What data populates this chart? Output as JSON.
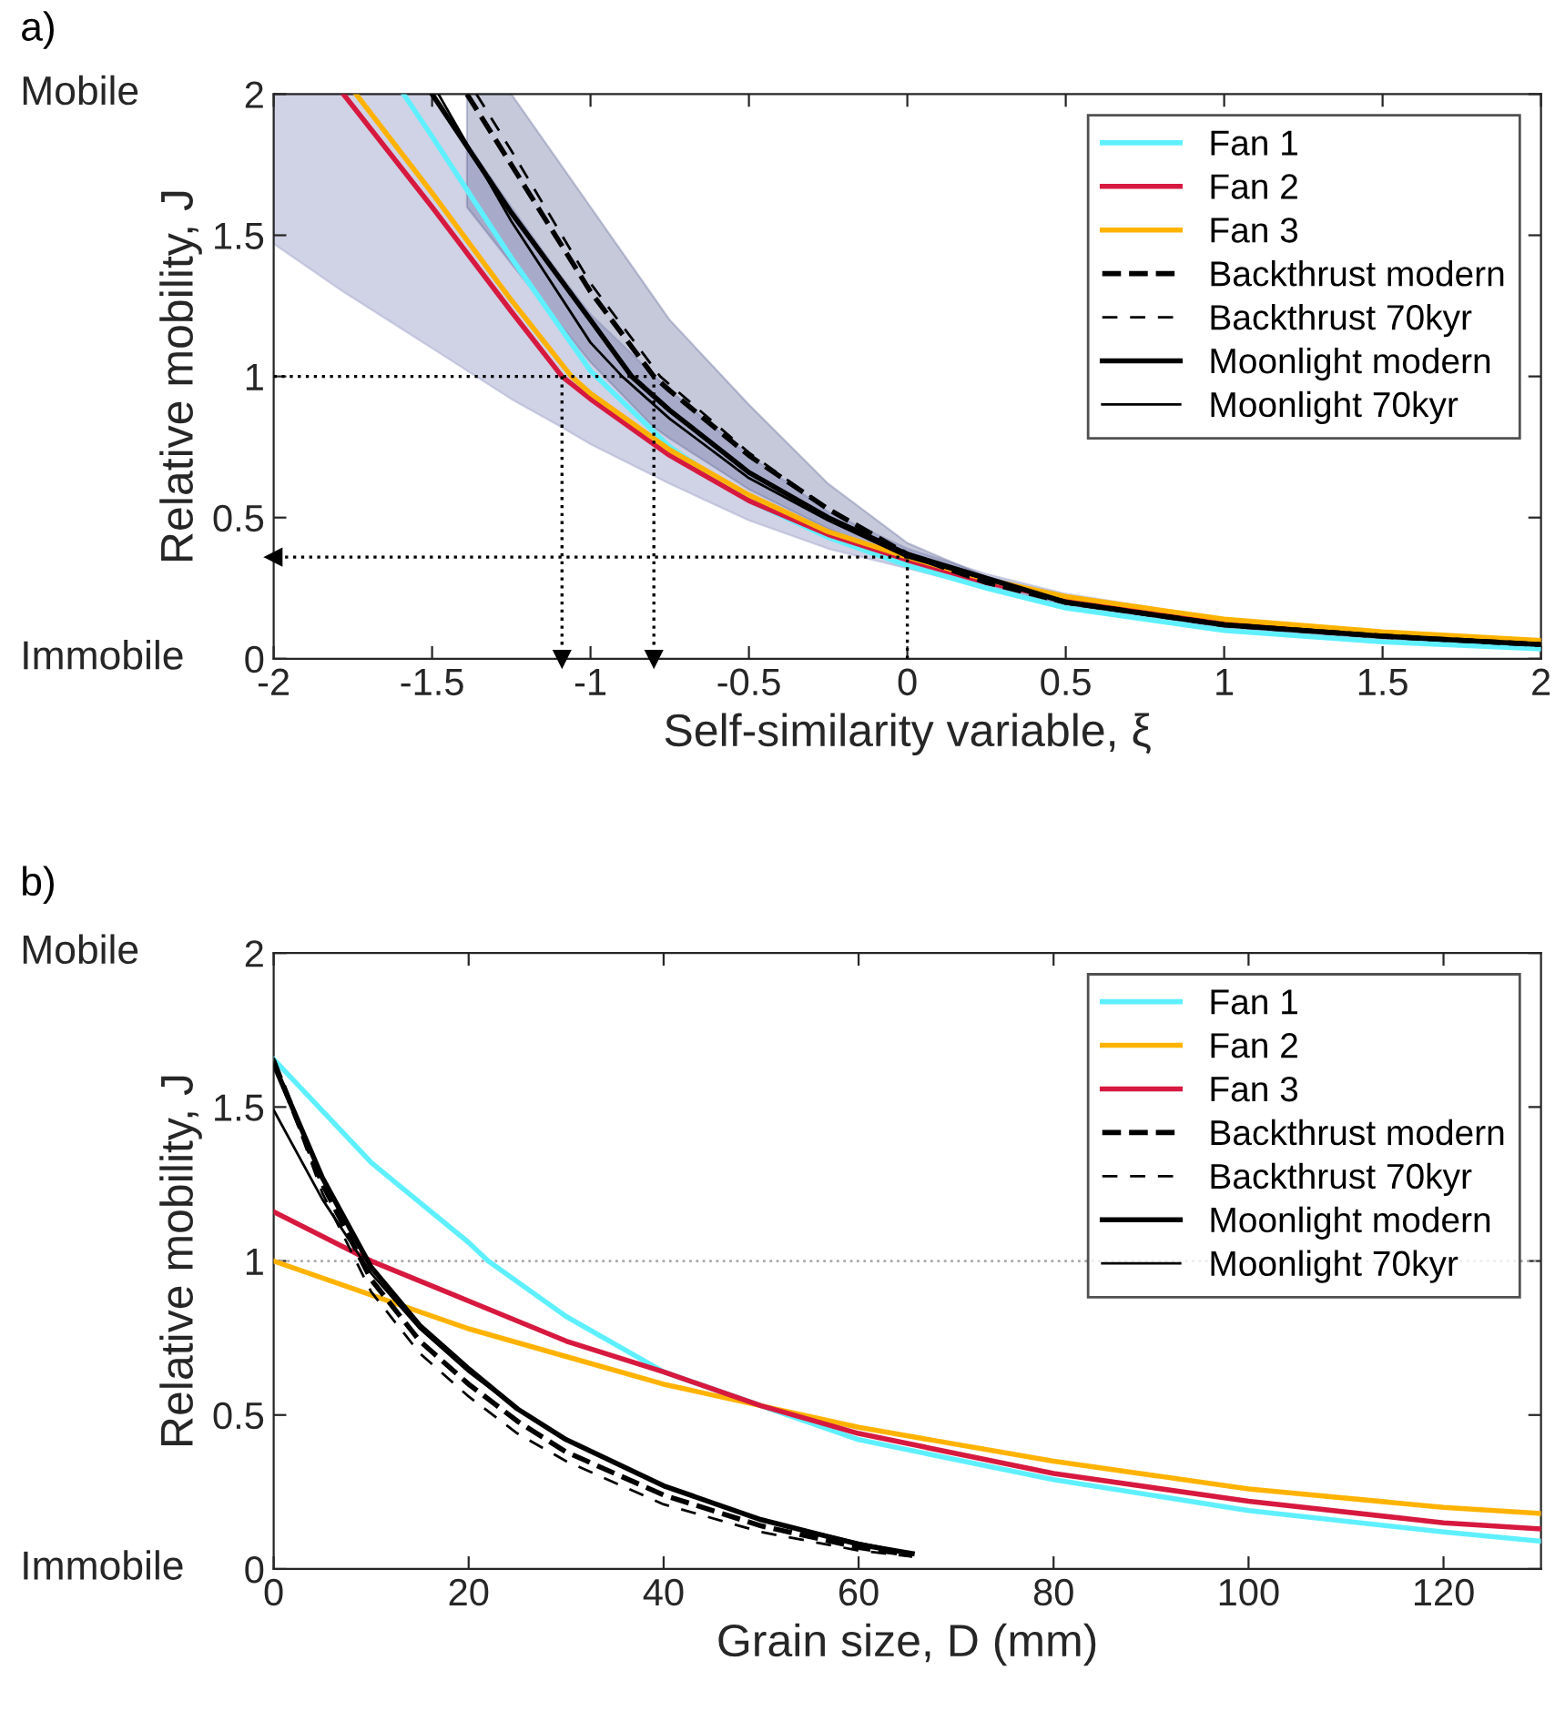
{
  "chart_data": [
    {
      "type": "line",
      "xlabel": "Self-similarity variable, ξ",
      "ylabel": "Relative mobility, J",
      "annotations": [
        "a)",
        "Mobile",
        "Immobile"
      ],
      "xlim": [
        -2,
        2
      ],
      "ylim": [
        0,
        2
      ],
      "xticks": [
        -2,
        -1.5,
        -1,
        -0.5,
        0,
        0.5,
        1,
        1.5,
        2
      ],
      "yticks": [
        0,
        0.5,
        1,
        1.5,
        2
      ],
      "grid": false,
      "legend": "top right",
      "series": [
        {
          "name": "Fan 1",
          "color": "#5ff0ff",
          "x": [
            -1.59,
            -1.5,
            -1.25,
            -1,
            -0.75,
            -0.5,
            -0.25,
            0,
            0.25,
            0.5,
            1,
            1.5,
            2
          ],
          "values": [
            2,
            1.85,
            1.42,
            1.02,
            0.75,
            0.56,
            0.43,
            0.33,
            0.25,
            0.18,
            0.1,
            0.06,
            0.035
          ]
        },
        {
          "name": "Fan 2",
          "color": "#d7193f",
          "x": [
            -2,
            -1.78,
            -1.5,
            -1.25,
            -1.09,
            -1,
            -0.75,
            -0.5,
            -0.25,
            0,
            0.25,
            0.5,
            1,
            1.5,
            2
          ],
          "values": [
            null,
            2,
            1.6,
            1.23,
            1,
            0.92,
            0.72,
            0.56,
            0.44,
            0.35,
            0.27,
            0.21,
            0.13,
            0.085,
            0.055
          ],
          "lower": [
            1.47,
            1.3,
            1.1,
            0.92,
            0.82,
            0.76,
            0.62,
            0.49,
            0.39,
            0.32,
            0.25,
            0.19,
            0.11,
            0.07,
            0.04
          ],
          "upper": [
            2,
            2,
            2,
            1.6,
            1.35,
            1.22,
            0.95,
            0.72,
            0.52,
            0.39,
            0.3,
            0.23,
            0.14,
            0.09,
            0.06
          ]
        },
        {
          "name": "Fan 3",
          "color": "#ffb300",
          "x": [
            -1.74,
            -1.5,
            -1.25,
            -1.06,
            -1,
            -0.75,
            -0.5,
            -0.25,
            0,
            0.25,
            0.5,
            1,
            1.5,
            2
          ],
          "values": [
            2,
            1.65,
            1.27,
            1,
            0.94,
            0.74,
            0.58,
            0.45,
            0.36,
            0.28,
            0.22,
            0.14,
            0.095,
            0.065
          ]
        },
        {
          "name": "Backthrust modern",
          "color": "#000000",
          "line_style": "dashed",
          "x": [
            -1.39,
            -1.25,
            -1,
            -0.8,
            -0.75,
            -0.5,
            -0.25,
            0,
            0.25,
            0.5,
            1,
            1.5,
            2
          ],
          "values": [
            2,
            1.75,
            1.3,
            1.0,
            0.95,
            0.72,
            0.53,
            0.37,
            0.27,
            0.2,
            0.12,
            0.08,
            0.05
          ],
          "lower": [
            1.6,
            1.4,
            1.05,
            0.82,
            0.78,
            0.6,
            0.46,
            0.34,
            0.25,
            0.19,
            0.11,
            0.07,
            0.04
          ],
          "upper": [
            2,
            2,
            1.6,
            1.28,
            1.2,
            0.9,
            0.62,
            0.41,
            0.29,
            0.22,
            0.14,
            0.09,
            0.06
          ]
        },
        {
          "name": "Backthrust 70kyr",
          "color": "#000000",
          "line_style": "dashed",
          "x": [
            -1.36,
            -1.25,
            -1,
            -0.78,
            -0.5,
            -0.25,
            0,
            0.5,
            1,
            1.5,
            2
          ],
          "values": [
            2,
            1.8,
            1.33,
            1.0,
            0.73,
            0.53,
            0.37,
            0.2,
            0.12,
            0.08,
            0.05
          ]
        },
        {
          "name": "Moonlight modern",
          "color": "#000000",
          "line_style": "solid",
          "x": [
            -1.5,
            -1.25,
            -1,
            -0.87,
            -0.75,
            -0.5,
            -0.25,
            0,
            0.5,
            1,
            1.5,
            2
          ],
          "values": [
            2,
            1.58,
            1.2,
            1.0,
            0.88,
            0.66,
            0.5,
            0.37,
            0.2,
            0.12,
            0.08,
            0.05
          ]
        },
        {
          "name": "Moonlight 70kyr",
          "color": "#000000",
          "line_style": "solid",
          "x": [
            -1.48,
            -1.25,
            -1,
            -0.9,
            -0.75,
            -0.5,
            -0.25,
            0,
            0.5,
            1,
            1.5,
            2
          ],
          "values": [
            2,
            1.55,
            1.12,
            1.0,
            0.85,
            0.64,
            0.49,
            0.36,
            0.2,
            0.12,
            0.08,
            0.05
          ]
        },
        {
          "color": "#000000",
          "line_style": "dotted",
          "x": [
            -2,
            -0.8
          ],
          "values": [
            1,
            1
          ]
        },
        {
          "color": "#000000",
          "line_style": "dotted",
          "marker": "triangle",
          "x": [
            -1.09,
            -1.09
          ],
          "values": [
            1,
            0
          ]
        },
        {
          "color": "#000000",
          "line_style": "dotted",
          "marker": "triangle",
          "x": [
            -0.8,
            -0.8
          ],
          "values": [
            1,
            0
          ]
        },
        {
          "color": "#000000",
          "line_style": "dotted",
          "x": [
            0,
            0
          ],
          "values": [
            0,
            0.36
          ]
        },
        {
          "color": "#000000",
          "line_style": "dotted",
          "marker": "triangle",
          "x": [
            0,
            -2
          ],
          "values": [
            0.36,
            0.36
          ]
        }
      ]
    },
    {
      "type": "line",
      "xlabel": "Grain size, D (mm)",
      "ylabel": "Relative mobility, J",
      "annotations": [
        "b)",
        "Mobile",
        "Immobile"
      ],
      "xlim": [
        0,
        130
      ],
      "ylim": [
        0,
        2
      ],
      "xticks": [
        0,
        20,
        40,
        60,
        80,
        100,
        120
      ],
      "yticks": [
        0,
        0.5,
        1,
        1.5,
        2
      ],
      "grid": false,
      "legend": "top right",
      "ref_lines": [
        {
          "axis": "y",
          "value": 1,
          "color": "#aaaaaa",
          "line_style": "dotted"
        }
      ],
      "series": [
        {
          "name": "Fan 1",
          "color": "#5ff0ff",
          "x": [
            0,
            10,
            20,
            22,
            30,
            40,
            50,
            60,
            80,
            100,
            120,
            130
          ],
          "values": [
            1.655,
            1.32,
            1.06,
            1.0,
            0.82,
            0.64,
            0.53,
            0.42,
            0.29,
            0.19,
            0.12,
            0.09
          ]
        },
        {
          "name": "Fan 2",
          "color": "#ffb300",
          "x": [
            0,
            10,
            20,
            30,
            40,
            50,
            60,
            80,
            100,
            120,
            130
          ],
          "values": [
            1.0,
            0.89,
            0.78,
            0.69,
            0.6,
            0.53,
            0.46,
            0.35,
            0.26,
            0.2,
            0.18
          ]
        },
        {
          "name": "Fan 3",
          "color": "#d7193f",
          "x": [
            0,
            10,
            20,
            30,
            40,
            50,
            60,
            80,
            100,
            120,
            130
          ],
          "values": [
            1.16,
            1.0,
            0.87,
            0.74,
            0.64,
            0.53,
            0.44,
            0.31,
            0.22,
            0.15,
            0.13
          ]
        },
        {
          "name": "Backthrust modern",
          "color": "#000000",
          "line_style": "dashed",
          "x": [
            0,
            5,
            10,
            15,
            20,
            25,
            30,
            40,
            50,
            60,
            65.5
          ],
          "values": [
            1.65,
            1.25,
            0.94,
            0.74,
            0.6,
            0.48,
            0.38,
            0.24,
            0.14,
            0.07,
            0.045
          ]
        },
        {
          "name": "Backthrust 70kyr",
          "color": "#000000",
          "line_style": "dashed",
          "x": [
            0,
            5,
            10,
            15,
            20,
            25,
            30,
            40,
            50,
            60,
            65.5
          ],
          "values": [
            1.66,
            1.22,
            0.9,
            0.7,
            0.56,
            0.44,
            0.35,
            0.21,
            0.12,
            0.06,
            0.04
          ]
        },
        {
          "name": "Moonlight modern",
          "color": "#000000",
          "line_style": "solid",
          "x": [
            0,
            5,
            10,
            15,
            20,
            25,
            30,
            40,
            50,
            60,
            65.5
          ],
          "values": [
            1.64,
            1.27,
            0.98,
            0.79,
            0.65,
            0.52,
            0.42,
            0.27,
            0.16,
            0.08,
            0.05
          ]
        },
        {
          "name": "Moonlight 70kyr",
          "color": "#000000",
          "line_style": "solid",
          "x": [
            0,
            5,
            10,
            15,
            20,
            25,
            30,
            40,
            50,
            60,
            65.5
          ],
          "values": [
            1.49,
            1.2,
            0.96,
            0.78,
            0.64,
            0.52,
            0.42,
            0.27,
            0.16,
            0.085,
            0.05
          ]
        }
      ]
    }
  ]
}
